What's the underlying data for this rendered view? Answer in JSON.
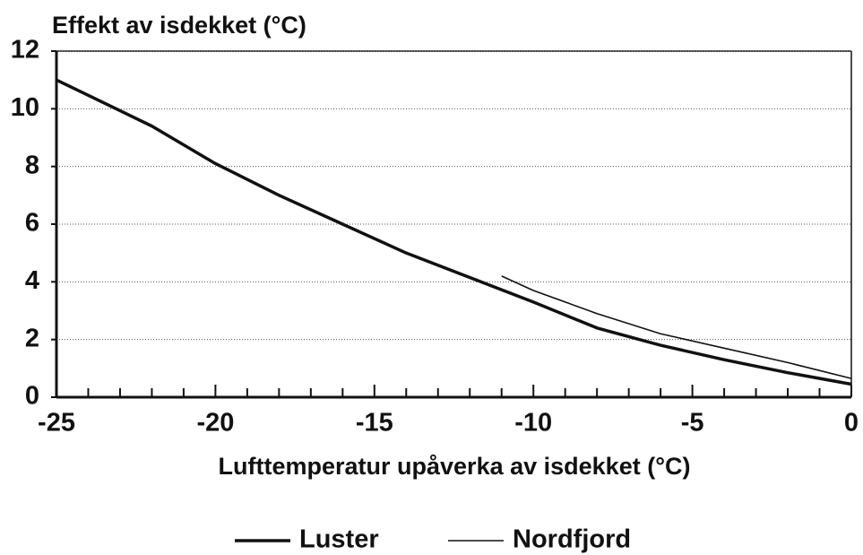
{
  "chart_data": {
    "type": "line",
    "title": "Effekt av isdekket (°C)",
    "x_label": "Lufttemperatur upåverka av isdekket (°C)",
    "series": [
      {
        "name": "Luster",
        "color": "#111111",
        "x": [
          -25,
          -22,
          -20,
          -18,
          -16,
          -14,
          -12,
          -10,
          -8,
          -6,
          -4,
          -2,
          0
        ],
        "values": [
          11,
          9.4,
          8.1,
          7,
          6,
          5,
          4.15,
          3.3,
          2.4,
          1.8,
          1.3,
          0.85,
          0.45
        ]
      },
      {
        "name": "Nordfjord",
        "color": "#111111",
        "x": [
          -11,
          -10,
          -8,
          -6,
          -4,
          -2,
          0
        ],
        "values": [
          4.2,
          3.7,
          2.9,
          2.2,
          1.7,
          1.2,
          0.65
        ]
      }
    ],
    "xlim": [
      -25,
      0
    ],
    "xticks": [
      -25,
      -20,
      -15,
      -10,
      -5,
      0
    ],
    "ylim": [
      0,
      12
    ],
    "yticks": [
      0,
      2,
      4,
      6,
      8,
      10,
      12
    ],
    "grid": true,
    "legend": "bottom"
  }
}
